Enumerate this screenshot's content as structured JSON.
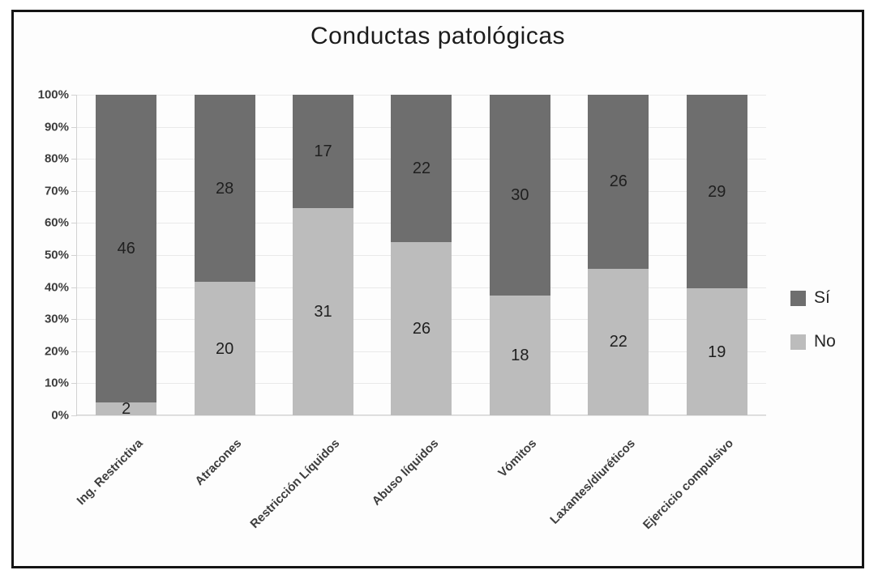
{
  "chart_data": {
    "type": "bar",
    "variant": "stacked-100-percent",
    "title": "Conductas patológicas",
    "categories": [
      "Ing. Restrictiva",
      "Atracones",
      "Restricción Líquidos",
      "Abuso líquidos",
      "Vómitos",
      "Laxantes/diuréticos",
      "Ejercicio compulsivo"
    ],
    "series": [
      {
        "name": "Sí",
        "color": "#6e6e6e",
        "values": [
          46,
          28,
          17,
          22,
          30,
          26,
          29
        ]
      },
      {
        "name": "No",
        "color": "#bcbcbc",
        "values": [
          2,
          20,
          31,
          26,
          18,
          22,
          19
        ]
      }
    ],
    "stack_order_bottom_to_top": [
      "No",
      "Sí"
    ],
    "y_axis": {
      "min": 0,
      "max": 100,
      "step": 10,
      "tick_labels": [
        "100%",
        "90%",
        "80%",
        "70%",
        "60%",
        "50%",
        "40%",
        "30%",
        "20%",
        "10%",
        "0%"
      ]
    },
    "legend": {
      "position": "right",
      "entries": [
        "Sí",
        "No"
      ]
    },
    "grid": "horizontal",
    "data_labels": "counts-centered-in-segments"
  },
  "colors": {
    "si": "#6e6e6e",
    "no": "#bcbcbc",
    "grid": "#e9e9e9",
    "axis": "#d2d2d2",
    "frame": "#141414",
    "title_text": "#1c1c1c",
    "tick_text": "#3d3d3d",
    "value_text": "#1f1f1f",
    "legend_text": "#262626",
    "background": "#fdfdfd"
  }
}
